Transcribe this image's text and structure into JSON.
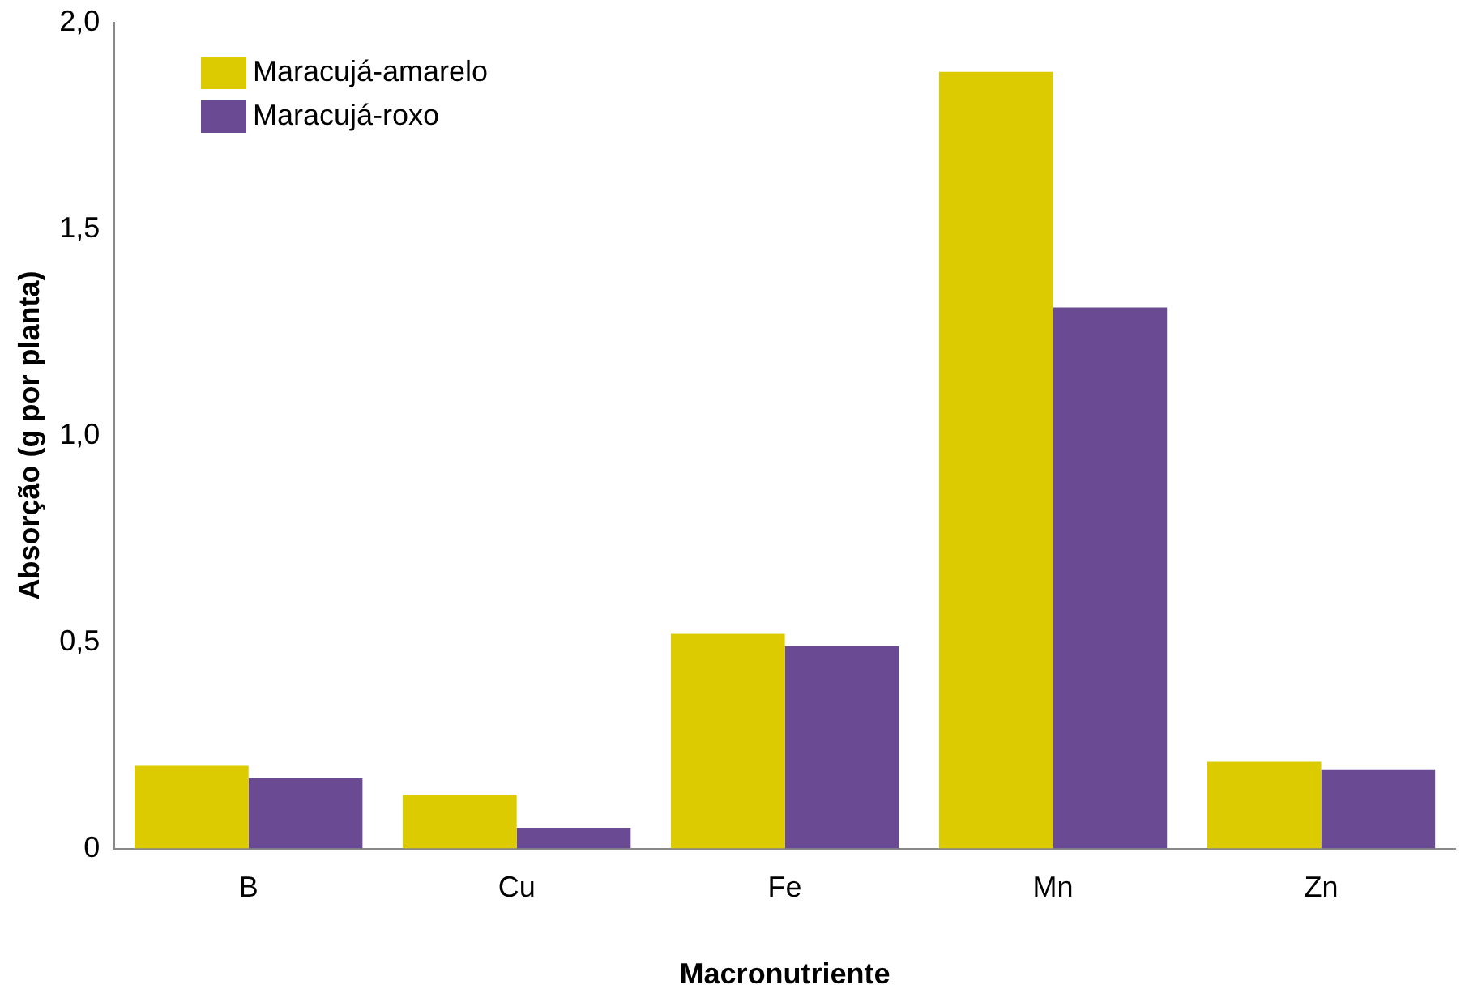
{
  "chart_data": {
    "type": "bar",
    "xlabel": "Macronutriente",
    "ylabel": "Absorção (g por planta)",
    "categories": [
      "B",
      "Cu",
      "Fe",
      "Mn",
      "Zn"
    ],
    "series": [
      {
        "name": "Maracujá-amarelo",
        "color": "#dccb00",
        "values": [
          0.2,
          0.13,
          0.52,
          1.88,
          0.21
        ]
      },
      {
        "name": "Maracujá-roxo",
        "color": "#694a93",
        "values": [
          0.17,
          0.05,
          0.49,
          1.31,
          0.19
        ]
      }
    ],
    "ylim": [
      0,
      2
    ],
    "yticks": [
      {
        "value": 0,
        "label": "0"
      },
      {
        "value": 0.5,
        "label": "0,5"
      },
      {
        "value": 1,
        "label": "1,0"
      },
      {
        "value": 1.5,
        "label": "1,5"
      },
      {
        "value": 2,
        "label": "2,0"
      }
    ],
    "grid": false,
    "legend": "top left"
  }
}
